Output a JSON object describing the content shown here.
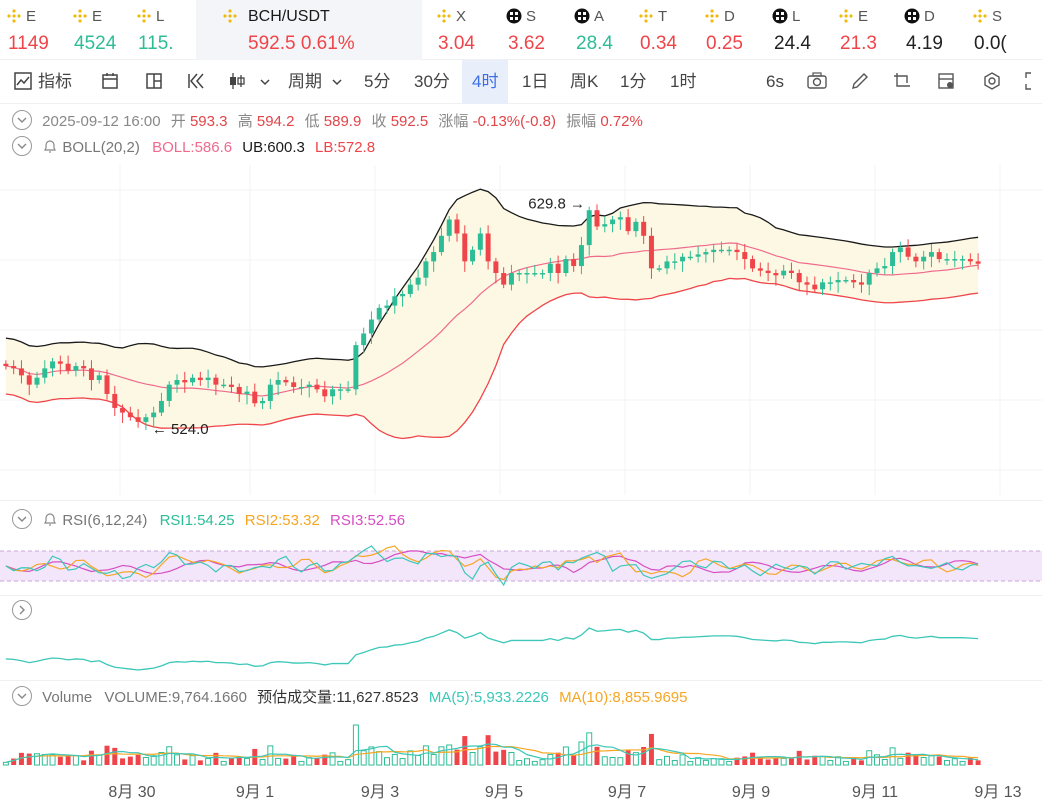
{
  "tickers": [
    {
      "symbol": "E",
      "price": "1149",
      "trend": "down",
      "icon": "bnb-icon"
    },
    {
      "symbol": "E",
      "price": "4524",
      "trend": "up",
      "icon": "bnb-icon"
    },
    {
      "symbol": "L",
      "price": "115.",
      "trend": "up",
      "icon": "bnb-icon"
    },
    {
      "symbol": "BCH/USDT",
      "price": "592.5",
      "change": "0.61%",
      "trend": "down",
      "icon": "bnb-icon",
      "active": true
    },
    {
      "symbol": "X",
      "price": "3.04",
      "trend": "down",
      "icon": "bnb-icon"
    },
    {
      "symbol": "S",
      "price": "3.62",
      "trend": "down",
      "icon": "okx-icon"
    },
    {
      "symbol": "A",
      "price": "28.4",
      "trend": "up",
      "icon": "okx-icon"
    },
    {
      "symbol": "T",
      "price": "0.34",
      "trend": "down",
      "icon": "bnb-icon"
    },
    {
      "symbol": "D",
      "price": "0.25",
      "trend": "down",
      "icon": "bnb-icon"
    },
    {
      "symbol": "L",
      "price": "24.4",
      "trend": "neutral",
      "icon": "okx-icon"
    },
    {
      "symbol": "E",
      "price": "21.3",
      "trend": "down",
      "icon": "bnb-icon"
    },
    {
      "symbol": "D",
      "price": "4.19",
      "trend": "neutral",
      "icon": "okx-icon"
    },
    {
      "symbol": "S",
      "price": "0.0(",
      "trend": "neutral",
      "icon": "bnb-icon"
    }
  ],
  "toolbar": {
    "indicators": "指标",
    "period": "周期",
    "intervals": [
      "5分",
      "30分",
      "4时",
      "1日",
      "周K",
      "1分",
      "1时"
    ],
    "selected_interval": "4时",
    "refresh": "6s"
  },
  "ohlc": {
    "datetime": "2025-09-12 16:00",
    "open_label": "开",
    "open": "593.3",
    "high_label": "高",
    "high": "594.2",
    "low_label": "低",
    "low": "589.9",
    "close_label": "收",
    "close": "592.5",
    "change_label": "涨幅",
    "change": "-0.13%(-0.8)",
    "amp_label": "振幅",
    "amp": "0.72%"
  },
  "boll": {
    "name": "BOLL(20,2)",
    "mid": "BOLL:586.6",
    "ub": "UB:600.3",
    "lb": "LB:572.8"
  },
  "rsi": {
    "name": "RSI(6,12,24)",
    "rsi1": "RSI1:54.25",
    "rsi2": "RSI2:53.32",
    "rsi3": "RSI3:52.56"
  },
  "volume": {
    "name": "Volume",
    "volume": "VOLUME:9,764.1660",
    "estimate": "预估成交量:11,627.8523",
    "ma5": "MA(5):5,933.2226",
    "ma10": "MA(10):8,855.9695"
  },
  "x_axis_labels": [
    "8月 30",
    "9月 1",
    "9月 3",
    "9月 5",
    "9月 7",
    "9月 9",
    "9月 11",
    "9月 13"
  ],
  "chart_data": {
    "type": "candlestick",
    "high_marker": "629.8",
    "low_marker": "524.0",
    "x_labels": [
      "8月 30",
      "9月 1",
      "9月 3",
      "9月 5",
      "9月 7",
      "9月 9",
      "9月 11",
      "9月 13"
    ],
    "price_range": [
      505,
      640
    ],
    "closes": [
      557,
      556,
      553,
      549,
      552,
      556,
      559,
      558,
      555,
      557,
      556,
      551,
      553,
      545,
      539,
      537,
      535,
      533,
      535,
      537,
      542,
      549,
      551,
      550,
      552,
      551,
      552,
      549,
      549,
      548,
      545,
      546,
      541,
      542,
      549,
      551,
      550,
      548,
      548,
      549,
      547,
      544,
      547,
      547,
      547,
      566,
      571,
      577,
      582,
      583,
      587,
      588,
      592,
      595,
      602,
      606,
      613,
      620,
      614,
      602,
      607,
      614,
      602,
      597,
      592,
      597,
      597,
      597,
      597,
      597,
      601,
      597,
      603,
      600,
      609,
      624,
      617,
      618,
      620,
      621,
      615,
      619,
      613,
      599,
      599,
      602,
      602,
      604,
      604,
      605,
      606,
      607,
      607,
      607,
      606,
      603,
      599,
      598,
      597,
      596,
      598,
      597,
      593,
      592,
      590,
      593,
      593,
      594,
      594,
      593,
      592,
      597,
      599,
      600,
      606,
      608,
      604,
      602,
      604,
      606,
      603,
      603,
      603,
      603,
      602,
      601
    ],
    "colors": {
      "up": "#2dbd96",
      "down": "#ef454a",
      "boll_upper": "#1a1a1a",
      "boll_mid": "#ef6b8e",
      "boll_lower": "#ef454a",
      "band_fill": "#fdf8e3",
      "rsi1": "#3cc7b8",
      "rsi2": "#f5a623",
      "rsi3": "#d64fc2",
      "ma5": "#3cc7b8",
      "ma10": "#f5a623"
    }
  }
}
